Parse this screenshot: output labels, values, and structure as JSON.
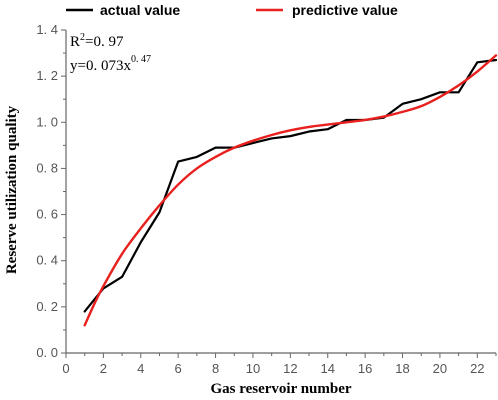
{
  "chart_data": {
    "type": "line",
    "xlabel": "Gas  reservoir number",
    "ylabel": "Reserve utilization quality",
    "xlim": [
      0,
      23
    ],
    "ylim": [
      0.0,
      1.4
    ],
    "xticks": [
      0,
      2,
      4,
      6,
      8,
      10,
      12,
      14,
      16,
      18,
      20,
      22
    ],
    "xtick_labels": [
      "0",
      "2",
      "4",
      "6",
      "8",
      "10",
      "12",
      "14",
      "16",
      "18",
      "20",
      "22"
    ],
    "yticks": [
      0.0,
      0.2,
      0.4,
      0.6,
      0.8,
      1.0,
      1.2,
      1.4
    ],
    "ytick_labels": [
      "0. 0",
      "0. 2",
      "0. 4",
      "0. 6",
      "0. 8",
      "1. 0",
      "1. 2",
      "1. 4"
    ],
    "grid": false,
    "legend_position": "top",
    "annotations": {
      "r2_base": "R",
      "r2_sup": "2",
      "r2_value": "=0. 97",
      "eq_base": "y=0. 073x",
      "eq_sup": "0. 47"
    },
    "series": [
      {
        "name": "actual  value",
        "color": "#000000",
        "x": [
          1,
          2,
          3,
          4,
          5,
          6,
          7,
          8,
          9,
          10,
          11,
          12,
          13,
          14,
          15,
          16,
          17,
          18,
          19,
          20,
          21,
          22,
          23
        ],
        "y": [
          0.18,
          0.28,
          0.33,
          0.48,
          0.61,
          0.83,
          0.85,
          0.89,
          0.89,
          0.91,
          0.93,
          0.94,
          0.96,
          0.97,
          1.01,
          1.01,
          1.02,
          1.08,
          1.1,
          1.13,
          1.13,
          1.26,
          1.27
        ]
      },
      {
        "name": "predictive  value",
        "color": "#e8201e",
        "x": [
          1,
          1.5,
          2,
          3,
          4,
          5,
          6,
          7,
          8,
          9,
          10,
          11,
          12,
          13,
          14,
          15,
          16,
          17,
          18,
          19,
          20,
          21,
          22,
          23
        ],
        "y": [
          0.12,
          0.21,
          0.29,
          0.43,
          0.54,
          0.64,
          0.73,
          0.8,
          0.85,
          0.89,
          0.92,
          0.945,
          0.965,
          0.98,
          0.99,
          1.0,
          1.01,
          1.025,
          1.045,
          1.07,
          1.11,
          1.16,
          1.22,
          1.29
        ]
      }
    ]
  }
}
